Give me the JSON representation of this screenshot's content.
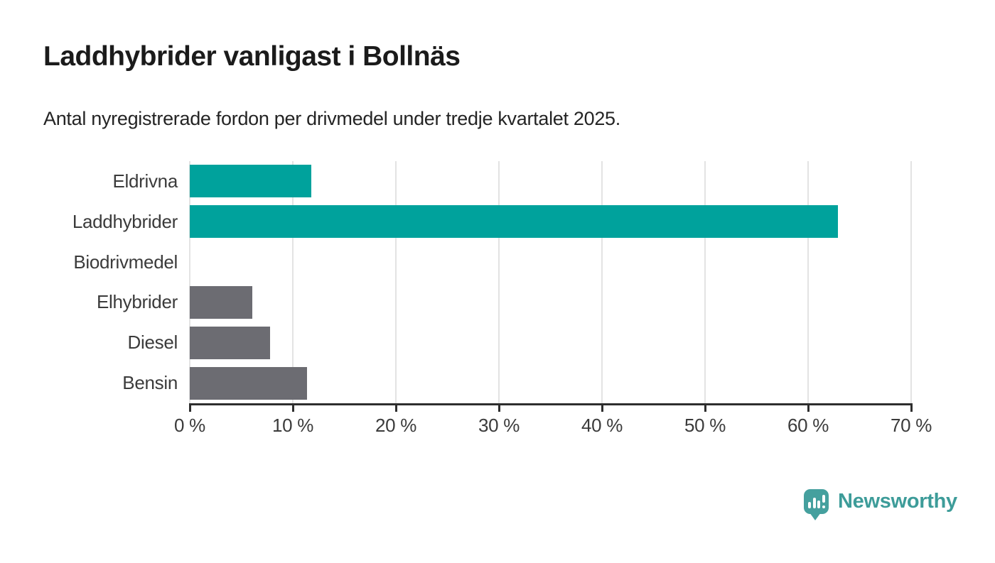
{
  "header": {
    "title": "Laddhybrider vanligast i Bollnäs",
    "subtitle": "Antal nyregistrerade fordon per drivmedel under tredje kvartalet 2025."
  },
  "chart_data": {
    "type": "bar",
    "orientation": "horizontal",
    "title": "Laddhybrider vanligast i Bollnäs",
    "subtitle": "Antal nyregistrerade fordon per drivmedel under tredje kvartalet 2025.",
    "categories": [
      "Eldrivna",
      "Laddhybrider",
      "Biodrivmedel",
      "Elhybrider",
      "Diesel",
      "Bensin"
    ],
    "values": [
      11.8,
      62.9,
      0,
      6.1,
      7.8,
      11.4
    ],
    "unit": "%",
    "xlim": [
      0,
      70
    ],
    "x_ticks": [
      0,
      10,
      20,
      30,
      40,
      50,
      60,
      70
    ],
    "x_tick_labels": [
      "0 %",
      "10 %",
      "20 %",
      "30 %",
      "40 %",
      "50 %",
      "60 %",
      "70 %"
    ],
    "bar_colors": [
      "#00a29c",
      "#00a29c",
      "#6c6c72",
      "#6c6c72",
      "#6c6c72",
      "#6c6c72"
    ],
    "highlight_color": "#00a29c",
    "default_color": "#6c6c72",
    "grid": true,
    "gridline_color": "#e3e3e3",
    "axis_color": "#2e2e2e",
    "label_color": "#3b3b3b"
  },
  "branding": {
    "logo_text": "Newsworthy",
    "logo_color": "#45a09e"
  }
}
